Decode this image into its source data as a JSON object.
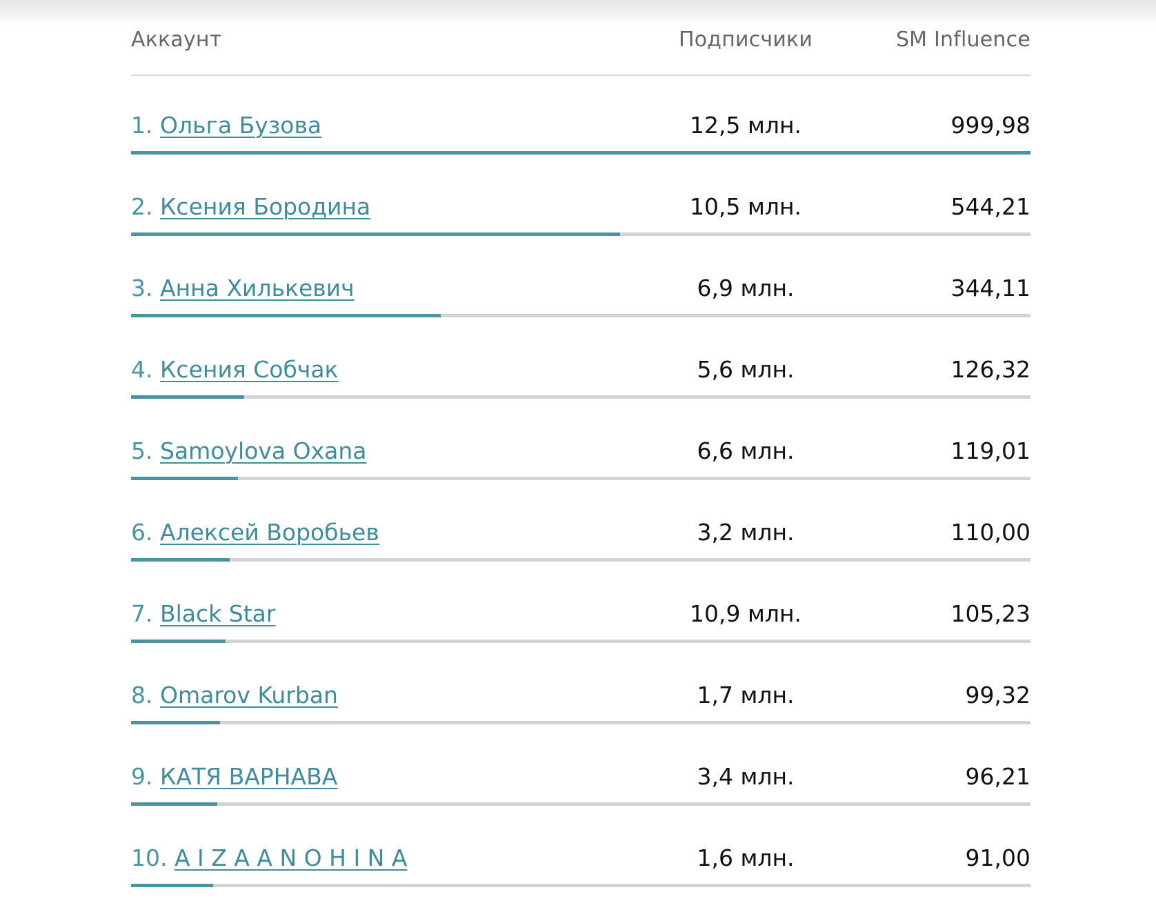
{
  "header": {
    "account_label": "Аккаунт",
    "subscribers_label": "Подписчики",
    "influence_label": "SM Influence"
  },
  "accent_color": "#4a93a2",
  "track_color": "#d3d3d3",
  "rows": [
    {
      "rank": "1.",
      "name": "Ольга Бузова",
      "subscribers": "12,5 млн.",
      "influence": "999,98",
      "bar_fraction": 1.0
    },
    {
      "rank": "2.",
      "name": "Ксения Бородина",
      "subscribers": "10,5 млн.",
      "influence": "544,21",
      "bar_fraction": 0.544
    },
    {
      "rank": "3.",
      "name": "Анна Хилькевич",
      "subscribers": "6,9 млн.",
      "influence": "344,11",
      "bar_fraction": 0.344
    },
    {
      "rank": "4.",
      "name": "Ксения Собчак",
      "subscribers": "5,6 млн.",
      "influence": "126,32",
      "bar_fraction": 0.126
    },
    {
      "rank": "5.",
      "name": "Samoylova Oxana",
      "subscribers": "6,6 млн.",
      "influence": "119,01",
      "bar_fraction": 0.119
    },
    {
      "rank": "6.",
      "name": "Алексей Воробьев",
      "subscribers": "3,2 млн.",
      "influence": "110,00",
      "bar_fraction": 0.11
    },
    {
      "rank": "7.",
      "name": "Black Star",
      "subscribers": "10,9 млн.",
      "influence": "105,23",
      "bar_fraction": 0.105
    },
    {
      "rank": "8.",
      "name": "Omarov Kurban",
      "subscribers": "1,7 млн.",
      "influence": "99,32",
      "bar_fraction": 0.099
    },
    {
      "rank": "9.",
      "name": "КАТЯ ВАРНАВА",
      "subscribers": "3,4 млн.",
      "influence": "96,21",
      "bar_fraction": 0.096
    },
    {
      "rank": "10.",
      "name": "A I Z A A N O H I N A",
      "subscribers": "1,6 млн.",
      "influence": "91,00",
      "bar_fraction": 0.091
    }
  ]
}
